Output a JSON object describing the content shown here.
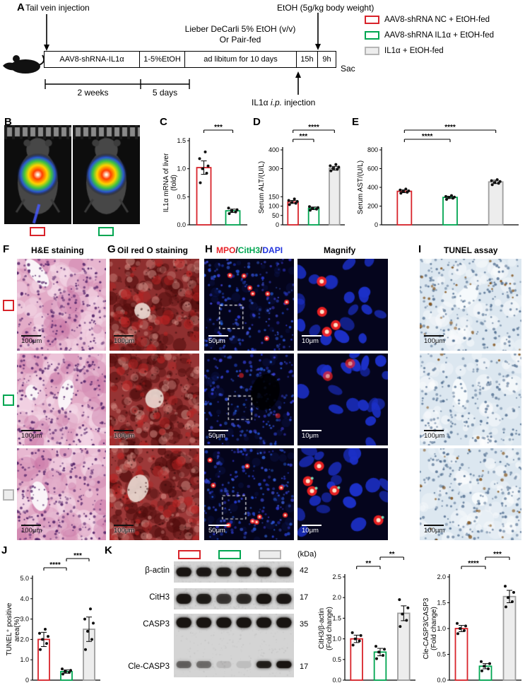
{
  "panel_labels": {
    "A": "A",
    "B": "B",
    "C": "C",
    "D": "D",
    "E": "E",
    "F": "F",
    "G": "G",
    "H": "H",
    "I": "I",
    "J": "J",
    "K": "K"
  },
  "colors": {
    "red": "#d8232a",
    "green": "#00a651",
    "gray_fill": "#ededed",
    "gray_stroke": "#9e9e9e"
  },
  "panelA": {
    "tail_vein_injection": "Tail vein injection",
    "etoh_note": "EtOH (5g/kg body weight)",
    "diet_line1": "Lieber DeCarli 5% EtOH (v/v)",
    "diet_line2": "Or Pair-fed",
    "timeline_boxes": [
      "AAV8-shRNA-IL1α",
      "1-5%EtOH",
      "ad libitum for 10 days",
      "15h",
      "9h"
    ],
    "sac": "Sac",
    "duration1": "2 weeks",
    "duration2": "5 days",
    "ip_pre": "IL1α ",
    "ip_it": "i.p.",
    "ip_post": " injection"
  },
  "legend": {
    "items": [
      {
        "label": "AAV8-shRNA NC + EtOH-fed",
        "color": "#d8232a",
        "fill": "#ffffff"
      },
      {
        "label": "AAV8-shRNA IL1α + EtOH-fed",
        "color": "#00a651",
        "fill": "#ffffff"
      },
      {
        "label": "IL1α + EtOH-fed",
        "color": "#b5b5b5",
        "fill": "#ededed"
      }
    ]
  },
  "panels": {
    "F": {
      "title": "H&E staining",
      "scale": "100μm"
    },
    "G": {
      "title": "Oil red O  staining",
      "scale": "100μm"
    },
    "H": {
      "title_parts": [
        {
          "text": "MPO"
        },
        {
          "text": "/"
        },
        {
          "text": "CitH3"
        },
        {
          "text": "/"
        },
        {
          "text": "DAPI"
        }
      ],
      "scale": "50μm"
    },
    "Magnify": {
      "title": "Magnify",
      "scale": "10μm"
    },
    "I": {
      "title": "TUNEL assay",
      "scale": "100μm"
    }
  },
  "panelK": {
    "kda_header": "(kDa)",
    "rows": [
      {
        "name": "β-actin",
        "kda": "42"
      },
      {
        "name": "CitH3",
        "kda": "17"
      },
      {
        "name": "CASP3",
        "kda": "35"
      },
      {
        "name": "Cle-CASP3",
        "kda": "17"
      }
    ]
  },
  "chart_data": [
    {
      "id": "C",
      "type": "bar",
      "ylabel": "IL1α mRNA of liver\n(fold)",
      "categories": [
        "AAV8-shRNA NC + EtOH-fed",
        "AAV8-shRNA IL1α + EtOH-fed"
      ],
      "values": [
        1.02,
        0.25
      ],
      "err": [
        0.12,
        0.03
      ],
      "points": [
        [
          0.75,
          0.92,
          1.0,
          1.05,
          1.18,
          1.3
        ],
        [
          0.2,
          0.23,
          0.25,
          0.27,
          0.3
        ]
      ],
      "bar_stroke": [
        "#d8232a",
        "#00a651"
      ],
      "bar_fill": [
        "#ffffff",
        "#ffffff"
      ],
      "ylim": [
        0,
        1.5
      ],
      "yticks": [
        0,
        0.5,
        1,
        1.5
      ],
      "ytick_labels": [
        "0.0",
        "0.5",
        "1.0",
        "1.5"
      ],
      "sig": [
        {
          "from": 0,
          "to": 1,
          "label": "***",
          "level": 0
        }
      ]
    },
    {
      "id": "D",
      "type": "bar",
      "ylabel": "Serum ALT/(U/L)",
      "categories": [
        "AAV8-shRNA NC + EtOH-fed",
        "AAV8-shRNA IL1α + EtOH-fed",
        "IL1α + EtOH-fed"
      ],
      "values": [
        122,
        88,
        302
      ],
      "err": [
        8,
        7,
        10
      ],
      "points": [
        [
          108,
          115,
          120,
          125,
          130,
          138
        ],
        [
          78,
          84,
          88,
          92,
          97
        ],
        [
          288,
          296,
          302,
          308,
          315,
          322
        ]
      ],
      "bar_stroke": [
        "#d8232a",
        "#00a651",
        "#9e9e9e"
      ],
      "bar_fill": [
        "#ffffff",
        "#ffffff",
        "#ededed"
      ],
      "ylim": [
        0,
        400
      ],
      "yticks": [
        0,
        50,
        100,
        150,
        300,
        400
      ],
      "ytick_labels": [
        "0",
        "50",
        "100",
        "150",
        "300",
        "400"
      ],
      "sig": [
        {
          "from": 0,
          "to": 1,
          "label": "***",
          "level": 0
        },
        {
          "from": 0,
          "to": 2,
          "label": "****",
          "level": 1
        }
      ]
    },
    {
      "id": "E",
      "type": "bar",
      "ylabel": "Serum AST/(U/L)",
      "categories": [
        "AAV8-shRNA NC + EtOH-fed",
        "AAV8-shRNA IL1α + EtOH-fed",
        "IL1α + EtOH-fed"
      ],
      "values": [
        358,
        293,
        458
      ],
      "err": [
        15,
        12,
        18
      ],
      "points": [
        [
          338,
          348,
          356,
          362,
          372,
          382
        ],
        [
          272,
          284,
          290,
          296,
          303,
          312
        ],
        [
          428,
          443,
          452,
          462,
          472,
          482
        ]
      ],
      "bar_stroke": [
        "#d8232a",
        "#00a651",
        "#9e9e9e"
      ],
      "bar_fill": [
        "#ffffff",
        "#ffffff",
        "#ededed"
      ],
      "ylim": [
        0,
        800
      ],
      "yticks": [
        0,
        200,
        400,
        600,
        800
      ],
      "ytick_labels": [
        "0",
        "200",
        "400",
        "600",
        "800"
      ],
      "sig": [
        {
          "from": 0,
          "to": 1,
          "label": "****",
          "level": 0
        },
        {
          "from": 0,
          "to": 2,
          "label": "****",
          "level": 1
        }
      ]
    },
    {
      "id": "J",
      "type": "bar",
      "ylabel": "TUNEL⁺ positive\narea(%)",
      "categories": [
        "AAV8-shRNA NC + EtOH-fed",
        "AAV8-shRNA IL1α + EtOH-fed",
        "IL1α + EtOH-fed"
      ],
      "values": [
        2.0,
        0.42,
        2.5
      ],
      "err": [
        0.35,
        0.08,
        0.6
      ],
      "points": [
        [
          1.5,
          1.8,
          2.0,
          2.15,
          2.3,
          2.5
        ],
        [
          0.3,
          0.38,
          0.42,
          0.48,
          0.55
        ],
        [
          1.5,
          2.0,
          2.4,
          2.8,
          3.0,
          3.5
        ]
      ],
      "bar_stroke": [
        "#d8232a",
        "#00a651",
        "#9e9e9e"
      ],
      "bar_fill": [
        "#ffffff",
        "#ffffff",
        "#ededed"
      ],
      "ylim": [
        0,
        5
      ],
      "yticks": [
        0,
        1,
        2,
        3,
        4,
        5
      ],
      "ytick_labels": [
        "0",
        "1.0",
        "2.0",
        "3.0",
        "4.0",
        "5.0"
      ],
      "sig": [
        {
          "from": 0,
          "to": 1,
          "label": "****",
          "level": 0
        },
        {
          "from": 1,
          "to": 2,
          "label": "***",
          "level": 1
        }
      ]
    },
    {
      "id": "K1",
      "type": "bar",
      "ylabel": "CitH3/β-actin\n(Fold change)",
      "categories": [
        "AAV8-shRNA NC + EtOH-fed",
        "AAV8-shRNA IL1α + EtOH-fed",
        "IL1α + EtOH-fed"
      ],
      "values": [
        1.0,
        0.68,
        1.62
      ],
      "err": [
        0.09,
        0.09,
        0.18
      ],
      "points": [
        [
          0.85,
          0.95,
          1.0,
          1.08,
          1.15
        ],
        [
          0.52,
          0.6,
          0.68,
          0.75,
          0.82
        ],
        [
          1.3,
          1.45,
          1.6,
          1.75,
          1.95
        ]
      ],
      "bar_stroke": [
        "#d8232a",
        "#00a651",
        "#9e9e9e"
      ],
      "bar_fill": [
        "#ffffff",
        "#ffffff",
        "#ededed"
      ],
      "ylim": [
        0,
        2.5
      ],
      "yticks": [
        0,
        0.5,
        1,
        1.5,
        2,
        2.5
      ],
      "ytick_labels": [
        "0.0",
        "0.5",
        "1.0",
        "1.5",
        "2.0",
        "2.5"
      ],
      "sig": [
        {
          "from": 0,
          "to": 1,
          "label": "**",
          "level": 0
        },
        {
          "from": 1,
          "to": 2,
          "label": "**",
          "level": 1
        }
      ]
    },
    {
      "id": "K2",
      "type": "bar",
      "ylabel": "Cle-CASP3/CASP3\n(Fold change)",
      "categories": [
        "AAV8-shRNA NC + EtOH-fed",
        "AAV8-shRNA IL1α + EtOH-fed",
        "IL1α + EtOH-fed"
      ],
      "values": [
        1.0,
        0.27,
        1.62
      ],
      "err": [
        0.06,
        0.05,
        0.12
      ],
      "points": [
        [
          0.9,
          0.96,
          1.0,
          1.05,
          1.1
        ],
        [
          0.18,
          0.22,
          0.27,
          0.32,
          0.36
        ],
        [
          1.42,
          1.52,
          1.6,
          1.7,
          1.82
        ]
      ],
      "bar_stroke": [
        "#d8232a",
        "#00a651",
        "#9e9e9e"
      ],
      "bar_fill": [
        "#ffffff",
        "#ffffff",
        "#ededed"
      ],
      "ylim": [
        0,
        2
      ],
      "yticks": [
        0,
        0.5,
        1,
        1.5,
        2
      ],
      "ytick_labels": [
        "0.0",
        "0.5",
        "1.0",
        "1.5",
        "2.0"
      ],
      "sig": [
        {
          "from": 0,
          "to": 1,
          "label": "****",
          "level": 0
        },
        {
          "from": 1,
          "to": 2,
          "label": "***",
          "level": 1
        }
      ]
    }
  ]
}
